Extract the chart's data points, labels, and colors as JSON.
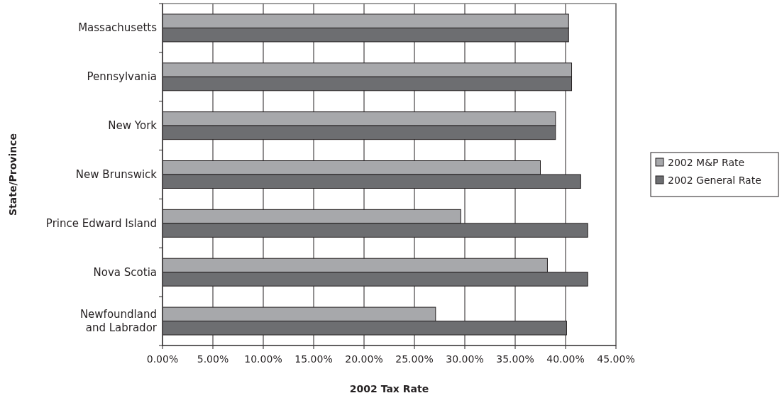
{
  "chart_data": {
    "type": "bar",
    "orientation": "horizontal",
    "xlabel": "2002 Tax Rate",
    "ylabel": "State/Province",
    "categories": [
      "Massachusetts",
      "Pennsylvania",
      "New York",
      "New Brunswick",
      "Prince Edward Island",
      "Nova Scotia",
      "Newfoundland and Labrador"
    ],
    "series": [
      {
        "name": "2002 M&P Rate",
        "color": "#a7a8ab",
        "values": [
          40.3,
          40.6,
          39.0,
          37.5,
          29.6,
          38.2,
          27.1
        ]
      },
      {
        "name": "2002 General Rate",
        "color": "#6d6e71",
        "values": [
          40.3,
          40.6,
          39.0,
          41.5,
          42.2,
          42.2,
          40.1
        ]
      }
    ],
    "xlim": [
      0,
      45
    ],
    "xticks": [
      {
        "value": 0,
        "label": "0.00%"
      },
      {
        "value": 5,
        "label": "5.00%"
      },
      {
        "value": 10,
        "label": "10.00%"
      },
      {
        "value": 15,
        "label": "15.00%"
      },
      {
        "value": 20,
        "label": "20.00%"
      },
      {
        "value": 25,
        "label": "25.00%"
      },
      {
        "value": 30,
        "label": "30.00%"
      },
      {
        "value": 35,
        "label": "35.00%"
      },
      {
        "value": 40,
        "label": "40.00%"
      },
      {
        "value": 45,
        "label": "45.00%"
      }
    ],
    "grid": "x",
    "legend": "right"
  }
}
